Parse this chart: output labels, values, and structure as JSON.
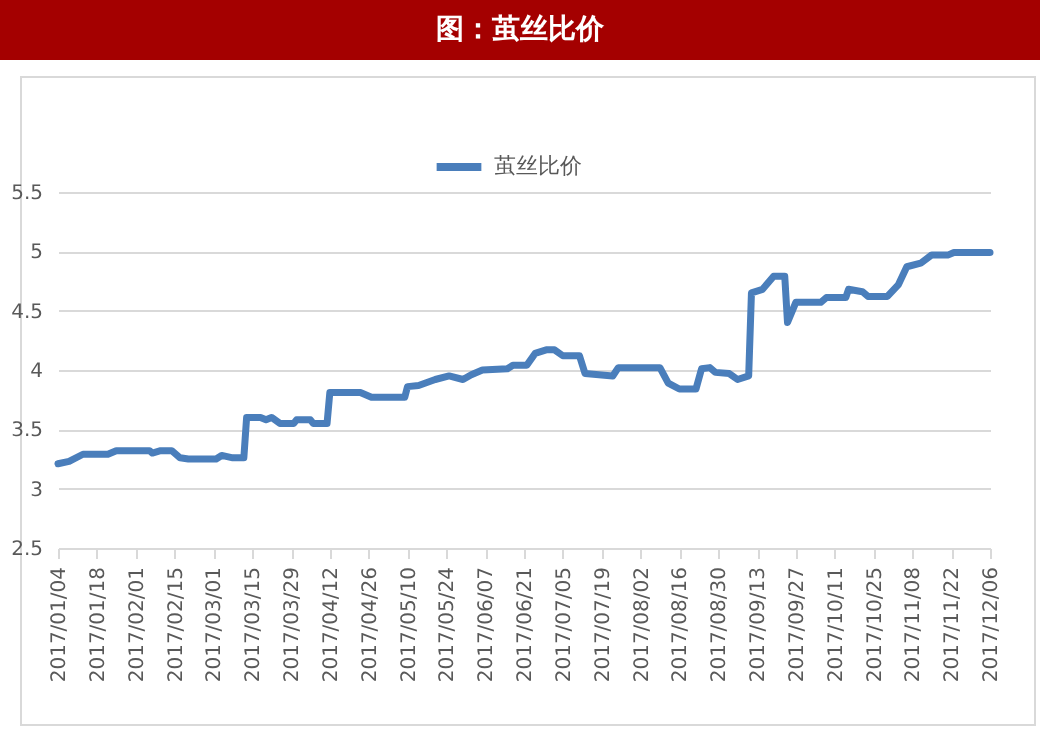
{
  "chart_data": {
    "type": "line",
    "title": "图：茧丝比价",
    "x": [
      "2017-01-04",
      "2017-01-08",
      "2017-01-13",
      "2017-01-22",
      "2017-01-25",
      "2017-02-06",
      "2017-02-07",
      "2017-02-10",
      "2017-02-14",
      "2017-02-17",
      "2017-02-20",
      "2017-03-02",
      "2017-03-04",
      "2017-03-08",
      "2017-03-12",
      "2017-03-13",
      "2017-03-18",
      "2017-03-20",
      "2017-03-22",
      "2017-03-25",
      "2017-03-30",
      "2017-03-31",
      "2017-04-05",
      "2017-04-06",
      "2017-04-11",
      "2017-04-12",
      "2017-04-23",
      "2017-04-27",
      "2017-05-09",
      "2017-05-10",
      "2017-05-14",
      "2017-05-20",
      "2017-05-25",
      "2017-05-30",
      "2017-06-02",
      "2017-06-06",
      "2017-06-15",
      "2017-06-17",
      "2017-06-22",
      "2017-06-25",
      "2017-06-29",
      "2017-07-02",
      "2017-07-05",
      "2017-07-11",
      "2017-07-13",
      "2017-07-23",
      "2017-07-25",
      "2017-08-09",
      "2017-08-12",
      "2017-08-16",
      "2017-08-22",
      "2017-08-24",
      "2017-08-27",
      "2017-08-29",
      "2017-09-03",
      "2017-09-06",
      "2017-09-10",
      "2017-09-11",
      "2017-09-15",
      "2017-09-19",
      "2017-09-23",
      "2017-09-24",
      "2017-09-27",
      "2017-10-06",
      "2017-10-08",
      "2017-10-15",
      "2017-10-16",
      "2017-10-21",
      "2017-10-23",
      "2017-10-30",
      "2017-11-03",
      "2017-11-06",
      "2017-11-11",
      "2017-11-15",
      "2017-11-21",
      "2017-11-23",
      "2017-12-06"
    ],
    "series": [
      {
        "name": "茧丝比价",
        "color": "#4a7ebb",
        "values": [
          3.21,
          3.23,
          3.29,
          3.29,
          3.32,
          3.32,
          3.3,
          3.32,
          3.32,
          3.26,
          3.25,
          3.25,
          3.28,
          3.26,
          3.26,
          3.6,
          3.6,
          3.58,
          3.6,
          3.55,
          3.55,
          3.58,
          3.58,
          3.55,
          3.55,
          3.81,
          3.81,
          3.77,
          3.77,
          3.86,
          3.87,
          3.92,
          3.95,
          3.92,
          3.96,
          4.0,
          4.01,
          4.04,
          4.04,
          4.14,
          4.17,
          4.17,
          4.12,
          4.12,
          3.97,
          3.95,
          4.02,
          4.02,
          3.89,
          3.84,
          3.84,
          4.01,
          4.02,
          3.98,
          3.97,
          3.92,
          3.95,
          4.65,
          4.68,
          4.79,
          4.79,
          4.4,
          4.57,
          4.57,
          4.61,
          4.61,
          4.68,
          4.66,
          4.62,
          4.62,
          4.72,
          4.87,
          4.9,
          4.97,
          4.97,
          4.99,
          4.99
        ]
      }
    ],
    "xlim": [
      "2017-01-04",
      "2017-12-06"
    ],
    "xticks": [
      {
        "value": "2017-01-04",
        "label": "2017/01/04"
      },
      {
        "value": "2017-01-18",
        "label": "2017/01/18"
      },
      {
        "value": "2017-02-01",
        "label": "2017/02/01"
      },
      {
        "value": "2017-02-15",
        "label": "2017/02/15"
      },
      {
        "value": "2017-03-01",
        "label": "2017/03/01"
      },
      {
        "value": "2017-03-15",
        "label": "2017/03/15"
      },
      {
        "value": "2017-03-29",
        "label": "2017/03/29"
      },
      {
        "value": "2017-04-12",
        "label": "2017/04/12"
      },
      {
        "value": "2017-04-26",
        "label": "2017/04/26"
      },
      {
        "value": "2017-05-10",
        "label": "2017/05/10"
      },
      {
        "value": "2017-05-24",
        "label": "2017/05/24"
      },
      {
        "value": "2017-06-07",
        "label": "2017/06/07"
      },
      {
        "value": "2017-06-21",
        "label": "2017/06/21"
      },
      {
        "value": "2017-07-05",
        "label": "2017/07/05"
      },
      {
        "value": "2017-07-19",
        "label": "2017/07/19"
      },
      {
        "value": "2017-08-02",
        "label": "2017/08/02"
      },
      {
        "value": "2017-08-16",
        "label": "2017/08/16"
      },
      {
        "value": "2017-08-30",
        "label": "2017/08/30"
      },
      {
        "value": "2017-09-13",
        "label": "2017/09/13"
      },
      {
        "value": "2017-09-27",
        "label": "2017/09/27"
      },
      {
        "value": "2017-10-11",
        "label": "2017/10/11"
      },
      {
        "value": "2017-10-25",
        "label": "2017/10/25"
      },
      {
        "value": "2017-11-08",
        "label": "2017/11/08"
      },
      {
        "value": "2017-11-22",
        "label": "2017/11/22"
      },
      {
        "value": "2017-12-06",
        "label": "2017/12/06"
      }
    ],
    "ylim": [
      2.5,
      5.5
    ],
    "yticks": [
      2.5,
      3,
      3.5,
      4,
      4.5,
      5,
      5.5
    ],
    "grid": "y",
    "legend": "top",
    "marker": "none",
    "line_style": "solid"
  }
}
